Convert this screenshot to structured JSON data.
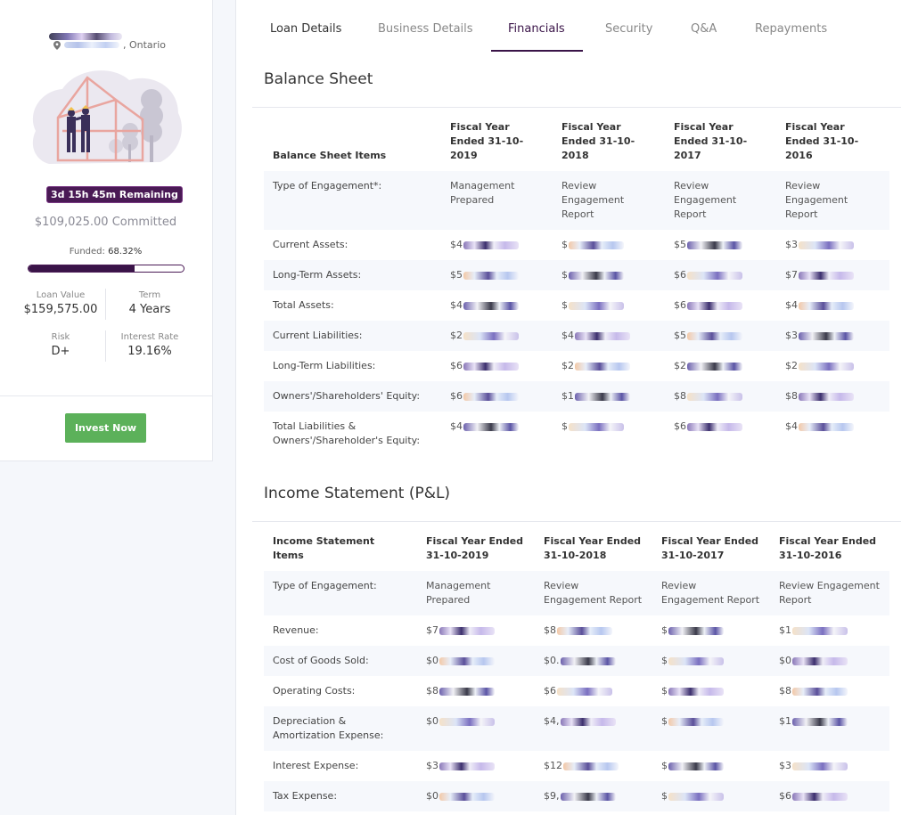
{
  "listing": {
    "location_suffix": ", Ontario",
    "time_remaining": "3d 15h 45m Remaining",
    "committed": "$109,025.00 Committed",
    "funded_label": "Funded:",
    "funded_value": "68.32%",
    "funded_fraction": 0.6832,
    "loan_value_label": "Loan Value",
    "loan_value": "$159,575.00",
    "term_label": "Term",
    "term": "4 Years",
    "risk_label": "Risk",
    "risk": "D+",
    "interest_label": "Interest Rate",
    "interest": "19.16%",
    "invest_label": "Invest Now"
  },
  "tabs": [
    "Loan Details",
    "Business Details",
    "Financials",
    "Security",
    "Q&A",
    "Repayments"
  ],
  "active_tab": "Financials",
  "balance_sheet": {
    "title": "Balance Sheet",
    "columns": [
      "Balance Sheet Items",
      "Fiscal Year Ended 31-10-2019",
      "Fiscal Year Ended 31-10-2018",
      "Fiscal Year Ended 31-10-2017",
      "Fiscal Year Ended 31-10-2016"
    ],
    "engagement_label": "Type of Engagement*:",
    "engagement": [
      "Management Prepared",
      "Review Engagement Report",
      "Review Engagement Report",
      "Review Engagement Report"
    ],
    "rows": [
      {
        "label": "Current Assets:",
        "prefixes": [
          "$4",
          "$",
          "$5",
          "$3"
        ]
      },
      {
        "label": "Long-Term Assets:",
        "prefixes": [
          "$5",
          "$",
          "$6",
          "$7"
        ]
      },
      {
        "label": "Total Assets:",
        "prefixes": [
          "$4",
          "$",
          "$6",
          "$4"
        ]
      },
      {
        "label": "Current Liabilities:",
        "prefixes": [
          "$2",
          "$4",
          "$5",
          "$3"
        ]
      },
      {
        "label": "Long-Term Liabilities:",
        "prefixes": [
          "$6",
          "$2",
          "$2",
          "$2"
        ]
      },
      {
        "label": "Owners'/Shareholders' Equity:",
        "prefixes": [
          "$6",
          "$1",
          "$8",
          "$8"
        ]
      },
      {
        "label": "Total Liabilities & Owners'/Shareholder's Equity:",
        "prefixes": [
          "$4",
          "$",
          "$6",
          "$4"
        ]
      }
    ]
  },
  "income_statement": {
    "title": "Income Statement (P&L)",
    "columns": [
      "Income Statement Items",
      "Fiscal Year Ended 31-10-2019",
      "Fiscal Year Ended 31-10-2018",
      "Fiscal Year Ended 31-10-2017",
      "Fiscal Year Ended 31-10-2016"
    ],
    "engagement_label": "Type of Engagement:",
    "engagement": [
      "Management Prepared",
      "Review Engagement Report",
      "Review Engagement Report",
      "Review Engagement Report"
    ],
    "rows": [
      {
        "label": "Revenue:",
        "prefixes": [
          "$7",
          "$8",
          "$",
          "$1"
        ]
      },
      {
        "label": "Cost of Goods Sold:",
        "prefixes": [
          "$0",
          "$0.",
          "$",
          "$0"
        ]
      },
      {
        "label": "Operating Costs:",
        "prefixes": [
          "$8",
          "$6",
          "$",
          "$8"
        ]
      },
      {
        "label": "Depreciation & Amortization Expense:",
        "prefixes": [
          "$0",
          "$4,",
          "$",
          "$1"
        ]
      },
      {
        "label": "Interest Expense:",
        "prefixes": [
          "$3",
          "$12",
          "$",
          "$3"
        ]
      },
      {
        "label": "Tax Expense:",
        "prefixes": [
          "$0",
          "$9,",
          "$",
          "$6"
        ]
      }
    ]
  },
  "colors": {
    "accent": "#3a1448",
    "invest_button": "#5cb15a",
    "row_alt": "#f6f8fc"
  }
}
